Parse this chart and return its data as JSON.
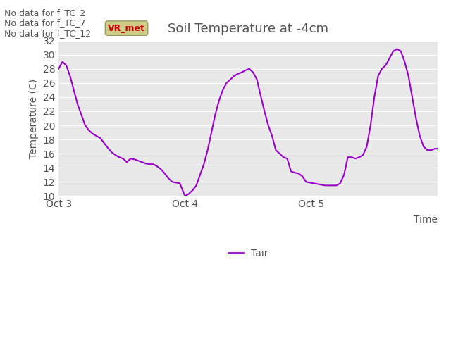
{
  "title": "Soil Temperature at -4cm",
  "xlabel": "Time",
  "ylabel": "Temperature (C)",
  "ylim": [
    10,
    32
  ],
  "yticks": [
    10,
    12,
    14,
    16,
    18,
    20,
    22,
    24,
    26,
    28,
    30,
    32
  ],
  "bg_color": "#e8e8e8",
  "line_color": "#9900cc",
  "legend_label": "Tair",
  "text_lines": [
    "No data for f_TC_2",
    "No data for f_TC_7",
    "No data for f_TC_12"
  ],
  "text_color": "#555555",
  "legend_box_color": "#cccc88",
  "legend_text_color": "#cc0000",
  "xtick_labels": [
    "Oct 3",
    "Oct 4",
    "Oct 5"
  ],
  "figsize": [
    6.4,
    4.8
  ],
  "dpi": 100,
  "x_pts": [
    0.0,
    0.03,
    0.06,
    0.09,
    0.12,
    0.15,
    0.18,
    0.21,
    0.24,
    0.27,
    0.3,
    0.33,
    0.36,
    0.39,
    0.42,
    0.45,
    0.48,
    0.51,
    0.54,
    0.57,
    0.6,
    0.63,
    0.66,
    0.69,
    0.72,
    0.75,
    0.78,
    0.81,
    0.84,
    0.87,
    0.9,
    0.93,
    0.96,
    1.0,
    1.03,
    1.06,
    1.09,
    1.12,
    1.15,
    1.18,
    1.21,
    1.24,
    1.27,
    1.3,
    1.33,
    1.36,
    1.39,
    1.42,
    1.45,
    1.48,
    1.51,
    1.54,
    1.57,
    1.6,
    1.63,
    1.66,
    1.69,
    1.72,
    1.75,
    1.78,
    1.81,
    1.84,
    1.87,
    1.9,
    1.93,
    1.96,
    1.99,
    2.02,
    2.05,
    2.08,
    2.11,
    2.14,
    2.17,
    2.2,
    2.23,
    2.26,
    2.29,
    2.32,
    2.35,
    2.38,
    2.41,
    2.44,
    2.47,
    2.5,
    2.53,
    2.56,
    2.59,
    2.62,
    2.65,
    2.68,
    2.71,
    2.74,
    2.77,
    2.8,
    2.83,
    2.86,
    2.89,
    2.92,
    2.95,
    2.98,
    3.0
  ],
  "y_pts": [
    28.0,
    29.0,
    28.5,
    27.0,
    25.0,
    23.0,
    21.5,
    20.0,
    19.3,
    18.8,
    18.5,
    18.2,
    17.5,
    16.8,
    16.2,
    15.8,
    15.5,
    15.3,
    14.8,
    15.3,
    15.2,
    15.0,
    14.8,
    14.6,
    14.5,
    14.5,
    14.2,
    13.8,
    13.2,
    12.5,
    12.0,
    11.9,
    11.8,
    10.0,
    10.3,
    10.8,
    11.5,
    13.0,
    14.5,
    16.5,
    19.0,
    21.5,
    23.5,
    25.0,
    26.0,
    26.5,
    27.0,
    27.3,
    27.5,
    27.8,
    28.0,
    27.5,
    26.5,
    24.2,
    22.0,
    20.0,
    18.5,
    16.5,
    16.0,
    15.5,
    15.3,
    13.5,
    13.3,
    13.2,
    12.8,
    12.0,
    11.9,
    11.8,
    11.7,
    11.6,
    11.5,
    11.5,
    11.5,
    11.5,
    11.8,
    13.0,
    15.5,
    15.5,
    15.3,
    15.5,
    15.8,
    17.0,
    20.0,
    24.0,
    27.0,
    28.0,
    28.5,
    29.5,
    30.5,
    30.8,
    30.5,
    29.0,
    27.0,
    24.0,
    21.0,
    18.5,
    17.0,
    16.5,
    16.5,
    16.7,
    16.7
  ]
}
